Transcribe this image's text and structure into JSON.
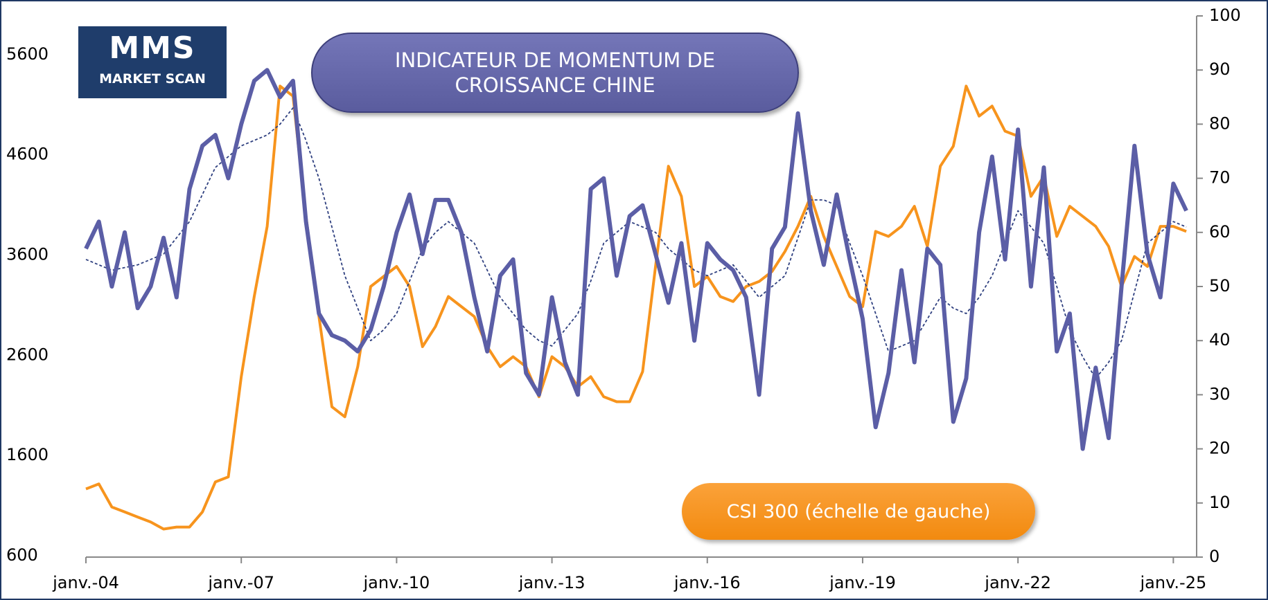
{
  "logo": {
    "title": "MMS",
    "subtitle": "MARKET SCAN"
  },
  "chart_data": {
    "type": "line",
    "title": "INDICATEUR DE MOMENTUM DE CROISSANCE CHINE",
    "x": [
      2004,
      2004.25,
      2004.5,
      2004.75,
      2005,
      2005.25,
      2005.5,
      2005.75,
      2006,
      2006.25,
      2006.5,
      2006.75,
      2007,
      2007.25,
      2007.5,
      2007.75,
      2008,
      2008.25,
      2008.5,
      2008.75,
      2009,
      2009.25,
      2009.5,
      2009.75,
      2010,
      2010.25,
      2010.5,
      2010.75,
      2011,
      2011.25,
      2011.5,
      2011.75,
      2012,
      2012.25,
      2012.5,
      2012.75,
      2013,
      2013.25,
      2013.5,
      2013.75,
      2014,
      2014.25,
      2014.5,
      2014.75,
      2015,
      2015.25,
      2015.5,
      2015.75,
      2016,
      2016.25,
      2016.5,
      2016.75,
      2017,
      2017.25,
      2017.5,
      2017.75,
      2018,
      2018.25,
      2018.5,
      2018.75,
      2019,
      2019.25,
      2019.5,
      2019.75,
      2020,
      2020.25,
      2020.5,
      2020.75,
      2021,
      2021.25,
      2021.5,
      2021.75,
      2022,
      2022.25,
      2022.5,
      2022.75,
      2023,
      2023.25,
      2023.5,
      2023.75,
      2024,
      2024.25,
      2024.5,
      2024.75,
      2025,
      2025.25
    ],
    "xlim": [
      2004,
      2025.45
    ],
    "xticks": [
      {
        "value": 2004,
        "label": "janv.-04"
      },
      {
        "value": 2007,
        "label": "janv.-07"
      },
      {
        "value": 2010,
        "label": "janv.-10"
      },
      {
        "value": 2013,
        "label": "janv.-13"
      },
      {
        "value": 2016,
        "label": "janv.-16"
      },
      {
        "value": 2019,
        "label": "janv.-19"
      },
      {
        "value": 2022,
        "label": "janv.-22"
      },
      {
        "value": 2025,
        "label": "janv.-25"
      }
    ],
    "ylim": [
      600,
      6000
    ],
    "yticks": [
      600,
      1600,
      2600,
      3600,
      4600,
      5600
    ],
    "y2lim": [
      0,
      100
    ],
    "y2ticks": [
      0,
      10,
      20,
      30,
      40,
      50,
      60,
      70,
      80,
      90,
      100
    ],
    "series": [
      {
        "name": "CSI 300 (échelle de gauche)",
        "color": "#f7941d",
        "values": [
          1280,
          1330,
          1100,
          1050,
          1000,
          950,
          880,
          900,
          900,
          1050,
          1350,
          1400,
          2400,
          3200,
          3900,
          5300,
          5200,
          4000,
          3000,
          2100,
          2000,
          2500,
          3300,
          3400,
          3500,
          3300,
          2700,
          2900,
          3200,
          3100,
          3000,
          2700,
          2500,
          2600,
          2500,
          2200,
          2600,
          2500,
          2300,
          2400,
          2200,
          2150,
          2150,
          2450,
          3500,
          4500,
          4200,
          3300,
          3400,
          3200,
          3150,
          3300,
          3350,
          3450,
          3650,
          3900,
          4200,
          3800,
          3500,
          3200,
          3100,
          3850,
          3800,
          3900,
          4100,
          3700,
          4500,
          4700,
          5300,
          5000,
          5100,
          4850,
          4800,
          4200,
          4400,
          3800,
          4100,
          4000,
          3900,
          3700,
          3300,
          3600,
          3500,
          3900,
          3900,
          3850
        ]
      },
      {
        "color": "#5b5ea6",
        "axis": "y2",
        "values": [
          57,
          62,
          50,
          60,
          46,
          50,
          59,
          48,
          68,
          76,
          78,
          70,
          80,
          88,
          90,
          85,
          88,
          62,
          45,
          41,
          40,
          38,
          42,
          50,
          60,
          67,
          56,
          66,
          66,
          60,
          48,
          38,
          52,
          55,
          34,
          30,
          48,
          36,
          30,
          68,
          70,
          52,
          63,
          65,
          56,
          47,
          58,
          40,
          58,
          55,
          53,
          48,
          30,
          57,
          61,
          82,
          64,
          54,
          67,
          55,
          44,
          24,
          34,
          53,
          36,
          57,
          54,
          25,
          33,
          60,
          74,
          55,
          79,
          50,
          72,
          38,
          45,
          20,
          35,
          22,
          50,
          76,
          56,
          48,
          69,
          64
        ]
      },
      {
        "color": "#2e3f7f",
        "axis": "y2",
        "dashed": true,
        "values": [
          55,
          54,
          53,
          53.5,
          54,
          55,
          56,
          59,
          62,
          67,
          72,
          74,
          76,
          77,
          78,
          80,
          83,
          77,
          70,
          61,
          52,
          46,
          40,
          42,
          45,
          51,
          57,
          60,
          62,
          60,
          58,
          53,
          48,
          45,
          42,
          40,
          39,
          42,
          45,
          51,
          58,
          60,
          62,
          61,
          60,
          57,
          55,
          53,
          52,
          53,
          54,
          51,
          48,
          50,
          52,
          59,
          66,
          66,
          65,
          58,
          52,
          45,
          38,
          39,
          40,
          44,
          48,
          46,
          45,
          48,
          52,
          58,
          64,
          61,
          58,
          50,
          42,
          37,
          33,
          36,
          40,
          49,
          58,
          60,
          62,
          61
        ]
      }
    ]
  }
}
